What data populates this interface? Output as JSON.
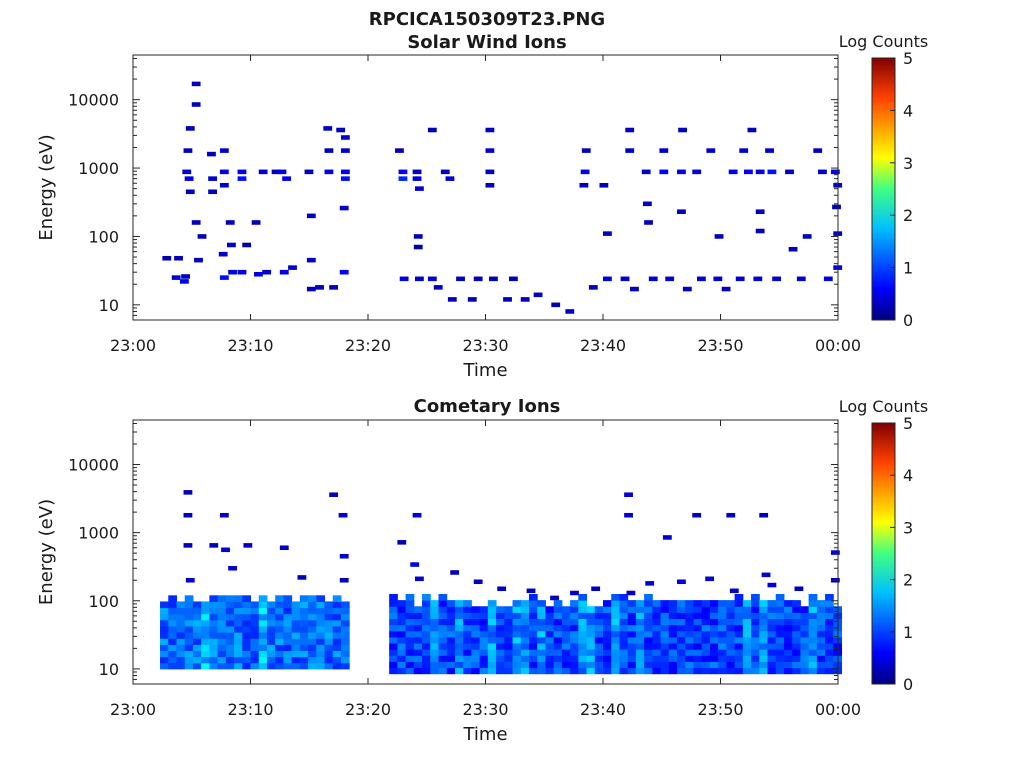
{
  "figure": {
    "title": "RPCICA150309T23.PNG"
  },
  "colors": {
    "background": "#ffffff",
    "plot_background": "#ffffff",
    "axis": "#262626",
    "colormap": [
      "#000080",
      "#0000ff",
      "#0080ff",
      "#00ffff",
      "#80ff80",
      "#ffff00",
      "#ff8000",
      "#ff0000",
      "#800000"
    ]
  },
  "chart_data": [
    {
      "type": "heatmap",
      "title": "Solar Wind Ions",
      "xlabel": "Time",
      "ylabel": "Energy (eV)",
      "x_ticks": [
        "23:00",
        "23:10",
        "23:20",
        "23:30",
        "23:40",
        "23:50",
        "00:00"
      ],
      "x_range_minutes": [
        0,
        60
      ],
      "y_ticks": [
        10,
        100,
        1000,
        10000
      ],
      "y_tick_labels": [
        "10",
        "100",
        "1000",
        "10000"
      ],
      "y_range": [
        6,
        45000
      ],
      "y_scale": "log",
      "colorbar": {
        "label": "Log Counts",
        "ticks": [
          "0",
          "1",
          "2",
          "3",
          "4",
          "5"
        ],
        "range": [
          0,
          5
        ]
      },
      "cells": [
        [
          2.5,
          48,
          0.2
        ],
        [
          3.5,
          48,
          0.3
        ],
        [
          3.3,
          25,
          0.4
        ],
        [
          4.0,
          22,
          0.6
        ],
        [
          4.1,
          26,
          0.3
        ],
        [
          4.2,
          880,
          0.4
        ],
        [
          4.3,
          1800,
          0.3
        ],
        [
          4.5,
          3800,
          0.3
        ],
        [
          4.4,
          700,
          0.5
        ],
        [
          4.5,
          450,
          0.3
        ],
        [
          5.0,
          17000,
          0.3
        ],
        [
          5.0,
          8500,
          0.3
        ],
        [
          5.2,
          45,
          0.3
        ],
        [
          5.0,
          160,
          0.3
        ],
        [
          5.5,
          100,
          0.3
        ],
        [
          6.3,
          1600,
          0.3
        ],
        [
          6.4,
          700,
          0.4
        ],
        [
          6.4,
          450,
          0.3
        ],
        [
          7.4,
          1800,
          0.4
        ],
        [
          7.4,
          880,
          0.5
        ],
        [
          7.4,
          560,
          0.4
        ],
        [
          7.3,
          55,
          0.4
        ],
        [
          7.4,
          25,
          0.7
        ],
        [
          8.1,
          30,
          0.5
        ],
        [
          8.0,
          75,
          0.3
        ],
        [
          7.9,
          160,
          0.3
        ],
        [
          8.9,
          880,
          0.5
        ],
        [
          8.9,
          700,
          0.7
        ],
        [
          8.9,
          30,
          0.5
        ],
        [
          9.3,
          75,
          0.2
        ],
        [
          10.1,
          160,
          0.3
        ],
        [
          10.3,
          28,
          0.5
        ],
        [
          10.7,
          880,
          0.4
        ],
        [
          11.0,
          30,
          0.4
        ],
        [
          11.8,
          880,
          0.3
        ],
        [
          12.3,
          880,
          0.5
        ],
        [
          12.5,
          30,
          0.5
        ],
        [
          12.7,
          700,
          0.6
        ],
        [
          13.2,
          35,
          0.4
        ],
        [
          14.6,
          880,
          0.3
        ],
        [
          14.8,
          200,
          0.3
        ],
        [
          14.8,
          45,
          0.3
        ],
        [
          14.8,
          17,
          0.3
        ],
        [
          15.5,
          18,
          0.3
        ],
        [
          16.2,
          3800,
          0.3
        ],
        [
          16.3,
          1800,
          0.3
        ],
        [
          16.3,
          880,
          0.5
        ],
        [
          16.7,
          18,
          0.3
        ],
        [
          17.3,
          3600,
          0.3
        ],
        [
          17.7,
          2800,
          0.4
        ],
        [
          17.7,
          1800,
          0.4
        ],
        [
          17.7,
          880,
          0.6
        ],
        [
          17.7,
          700,
          0.7
        ],
        [
          17.6,
          30,
          0.6
        ],
        [
          17.6,
          260,
          0.3
        ],
        [
          22.3,
          1800,
          0.3
        ],
        [
          22.6,
          880,
          0.6
        ],
        [
          22.6,
          700,
          0.8
        ],
        [
          22.7,
          24,
          0.5
        ],
        [
          23.8,
          880,
          0.3
        ],
        [
          23.8,
          700,
          0.4
        ],
        [
          23.9,
          100,
          0.3
        ],
        [
          23.9,
          70,
          0.2
        ],
        [
          24.0,
          24,
          0.4
        ],
        [
          24.0,
          500,
          0.4
        ],
        [
          25.1,
          3600,
          0.3
        ],
        [
          25.1,
          24,
          0.4
        ],
        [
          25.6,
          18,
          0.3
        ],
        [
          26.2,
          880,
          0.3
        ],
        [
          26.6,
          700,
          0.4
        ],
        [
          26.8,
          12,
          0.3
        ],
        [
          27.5,
          24,
          0.3
        ],
        [
          28.5,
          12,
          0.3
        ],
        [
          29.0,
          24,
          0.3
        ],
        [
          30.0,
          3600,
          0.3
        ],
        [
          30.0,
          1800,
          0.4
        ],
        [
          30.0,
          880,
          0.3
        ],
        [
          30.0,
          560,
          0.3
        ],
        [
          30.3,
          24,
          0.3
        ],
        [
          31.5,
          12,
          0.3
        ],
        [
          32.0,
          24,
          0.3
        ],
        [
          33.0,
          12,
          0.3
        ],
        [
          34.1,
          14,
          0.3
        ],
        [
          35.6,
          10,
          0.3
        ],
        [
          36.8,
          8,
          0.3
        ],
        [
          38.2,
          1800,
          0.3
        ],
        [
          38.1,
          880,
          0.5
        ],
        [
          38.0,
          560,
          0.3
        ],
        [
          38.8,
          18,
          0.3
        ],
        [
          39.7,
          560,
          0.3
        ],
        [
          40.0,
          24,
          0.5
        ],
        [
          40.0,
          110,
          0.3
        ],
        [
          41.5,
          24,
          0.4
        ],
        [
          41.9,
          3600,
          0.3
        ],
        [
          41.9,
          1800,
          0.4
        ],
        [
          42.3,
          17,
          0.3
        ],
        [
          43.3,
          880,
          0.4
        ],
        [
          43.4,
          300,
          0.3
        ],
        [
          43.5,
          160,
          0.3
        ],
        [
          43.9,
          24,
          0.4
        ],
        [
          44.8,
          880,
          0.6
        ],
        [
          44.8,
          1800,
          0.4
        ],
        [
          45.3,
          24,
          0.4
        ],
        [
          46.4,
          3600,
          0.3
        ],
        [
          46.3,
          880,
          0.5
        ],
        [
          46.3,
          230,
          0.3
        ],
        [
          46.8,
          17,
          0.3
        ],
        [
          47.6,
          880,
          0.4
        ],
        [
          48.0,
          24,
          0.4
        ],
        [
          48.8,
          1800,
          0.4
        ],
        [
          49.4,
          24,
          0.4
        ],
        [
          49.5,
          100,
          0.3
        ],
        [
          50.1,
          17,
          0.3
        ],
        [
          50.7,
          880,
          0.5
        ],
        [
          51.3,
          24,
          0.4
        ],
        [
          51.6,
          1800,
          0.4
        ],
        [
          52.0,
          880,
          0.6
        ],
        [
          52.3,
          3600,
          0.3
        ],
        [
          52.8,
          24,
          0.4
        ],
        [
          53.0,
          880,
          0.5
        ],
        [
          53.0,
          230,
          0.3
        ],
        [
          53.0,
          120,
          0.3
        ],
        [
          53.8,
          1800,
          0.4
        ],
        [
          54.0,
          880,
          0.7
        ],
        [
          54.4,
          24,
          0.4
        ],
        [
          55.5,
          880,
          0.3
        ],
        [
          55.8,
          65,
          0.3
        ],
        [
          56.5,
          24,
          0.4
        ],
        [
          57.0,
          100,
          0.3
        ],
        [
          57.9,
          1800,
          0.3
        ],
        [
          58.3,
          880,
          0.4
        ],
        [
          58.8,
          24,
          0.5
        ],
        [
          59.4,
          880,
          0.6
        ],
        [
          59.6,
          560,
          0.4
        ],
        [
          59.5,
          270,
          0.3
        ],
        [
          59.6,
          110,
          0.3
        ],
        [
          59.6,
          35,
          0.5
        ]
      ]
    },
    {
      "type": "heatmap",
      "title": "Cometary Ions",
      "xlabel": "Time",
      "ylabel": "Energy (eV)",
      "x_ticks": [
        "23:00",
        "23:10",
        "23:20",
        "23:30",
        "23:40",
        "23:50",
        "00:00"
      ],
      "x_range_minutes": [
        0,
        60
      ],
      "y_ticks": [
        10,
        100,
        1000,
        10000
      ],
      "y_tick_labels": [
        "10",
        "100",
        "1000",
        "10000"
      ],
      "y_range": [
        6,
        45000
      ],
      "y_scale": "log",
      "colorbar": {
        "label": "Log Counts",
        "ticks": [
          "0",
          "1",
          "2",
          "3",
          "4",
          "5"
        ],
        "range": [
          0,
          5
        ]
      },
      "cells": [
        [
          4.3,
          3900,
          0.3
        ],
        [
          4.3,
          1800,
          0.3
        ],
        [
          4.3,
          650,
          0.3
        ],
        [
          4.5,
          200,
          0.4
        ],
        [
          6.5,
          650,
          0.3
        ],
        [
          7.4,
          1800,
          0.3
        ],
        [
          7.5,
          560,
          0.4
        ],
        [
          8.1,
          300,
          0.4
        ],
        [
          9.4,
          650,
          0.3
        ],
        [
          12.5,
          600,
          0.4
        ],
        [
          14.0,
          220,
          0.3
        ],
        [
          16.7,
          3600,
          0.3
        ],
        [
          17.5,
          1800,
          0.4
        ],
        [
          17.6,
          450,
          0.4
        ],
        [
          17.6,
          200,
          0.3
        ],
        [
          22.5,
          720,
          0.3
        ],
        [
          23.8,
          1800,
          0.4
        ],
        [
          23.6,
          340,
          0.5
        ],
        [
          24.0,
          210,
          0.4
        ],
        [
          27.0,
          260,
          0.3
        ],
        [
          29.0,
          190,
          0.3
        ],
        [
          31.0,
          150,
          0.3
        ],
        [
          33.5,
          140,
          0.3
        ],
        [
          35.5,
          110,
          0.3
        ],
        [
          37.2,
          130,
          0.4
        ],
        [
          39.0,
          150,
          0.3
        ],
        [
          41.8,
          3600,
          0.4
        ],
        [
          41.8,
          1800,
          0.4
        ],
        [
          42.0,
          130,
          0.4
        ],
        [
          43.6,
          180,
          0.4
        ],
        [
          45.1,
          850,
          0.4
        ],
        [
          46.3,
          190,
          0.4
        ],
        [
          47.6,
          1800,
          0.3
        ],
        [
          48.7,
          210,
          0.4
        ],
        [
          50.5,
          1800,
          0.4
        ],
        [
          50.8,
          140,
          0.4
        ],
        [
          53.3,
          1800,
          0.3
        ],
        [
          53.5,
          240,
          0.4
        ],
        [
          54.0,
          170,
          0.4
        ],
        [
          56.3,
          150,
          0.3
        ],
        [
          59.4,
          510,
          0.5
        ],
        [
          59.4,
          200,
          0.4
        ]
      ],
      "bands": [
        {
          "x0": 2.3,
          "x1": 18.0,
          "ylo": 10,
          "yhi": 100,
          "base": 0.8
        },
        {
          "x0": 21.8,
          "x1": 60.0,
          "ylo": 8.5,
          "yhi": 95,
          "base": 0.6
        }
      ]
    }
  ]
}
